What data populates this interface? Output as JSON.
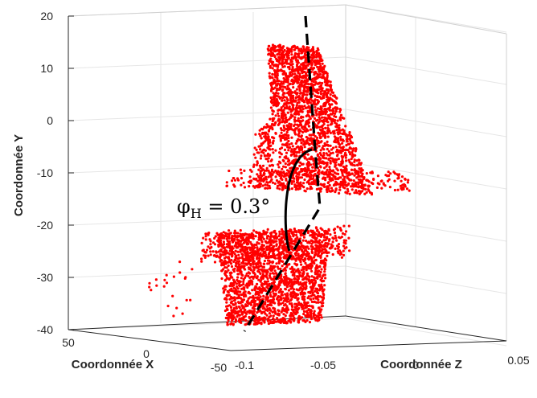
{
  "chart_data": {
    "type": "scatter",
    "title": "",
    "ylabel": "Coordonnée  Y",
    "xlabel": "Coordonnée X",
    "zlabel": "Coordonnée Z",
    "y_ticks": [
      "20",
      "10",
      "0",
      "-10",
      "-20",
      "-30",
      "-40"
    ],
    "x_ticks": [
      "50",
      "0",
      "-50"
    ],
    "z_ticks": [
      "-0.1",
      "-0.05",
      "0",
      "0.05"
    ],
    "ylim": [
      -40,
      20
    ],
    "grid": true,
    "marker_color": "#ff0000",
    "line_color": "#000000",
    "annotation": {
      "symbol": "φ",
      "subscript": "H",
      "text": " = 0.3°"
    },
    "clusters": [
      {
        "name": "",
        "description_points": "upper cloud",
        "y_range": [
          -13,
          14
        ]
      },
      {
        "name": "",
        "description_points": "lower cloud",
        "y_range": [
          -39,
          -21
        ]
      }
    ],
    "dashed_axis_line": [
      [
        0.05,
        20
      ],
      [
        0.08,
        -6
      ],
      [
        0.08,
        -16
      ],
      [
        -0.02,
        -40
      ]
    ]
  }
}
